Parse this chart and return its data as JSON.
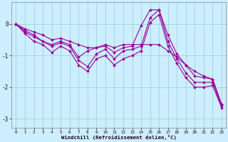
{
  "xlabel": "Windchill (Refroidissement éolien,°C)",
  "bg_color": "#cceeff",
  "line_color": "#990099",
  "grid_color": "#99cccc",
  "x_values": [
    0,
    1,
    2,
    3,
    4,
    5,
    6,
    7,
    8,
    9,
    10,
    11,
    12,
    13,
    14,
    15,
    16,
    17,
    18,
    19,
    20,
    21,
    22,
    23
  ],
  "lines": [
    [
      0.0,
      -0.15,
      -0.25,
      -0.35,
      -0.5,
      -0.45,
      -0.55,
      -0.65,
      -0.75,
      -0.75,
      -0.65,
      -0.75,
      -0.65,
      -0.65,
      -0.65,
      -0.65,
      -0.65,
      -0.85,
      -1.05,
      -1.3,
      -1.5,
      -1.65,
      -1.75,
      -2.55
    ],
    [
      0.0,
      -0.2,
      -0.35,
      -0.55,
      -0.65,
      -0.55,
      -0.65,
      -1.05,
      -0.85,
      -0.75,
      -0.7,
      -0.9,
      -0.75,
      -0.7,
      -0.05,
      0.45,
      0.45,
      -0.35,
      -0.95,
      -1.3,
      -1.65,
      -1.7,
      -1.75,
      -2.55
    ],
    [
      0.0,
      -0.25,
      -0.4,
      -0.55,
      -0.7,
      -0.6,
      -0.7,
      -1.15,
      -1.35,
      -0.95,
      -0.8,
      -1.1,
      -0.85,
      -0.8,
      -0.7,
      0.2,
      0.45,
      -0.55,
      -1.1,
      -1.55,
      -1.85,
      -1.85,
      -1.85,
      -2.6
    ],
    [
      0.0,
      -0.3,
      -0.55,
      -0.65,
      -0.9,
      -0.7,
      -0.85,
      -1.3,
      -1.5,
      -1.1,
      -1.0,
      -1.3,
      -1.1,
      -1.0,
      -0.85,
      0.05,
      0.3,
      -0.7,
      -1.25,
      -1.7,
      -2.0,
      -2.0,
      -1.95,
      -2.65
    ]
  ],
  "ylim": [
    -3.3,
    0.7
  ],
  "xlim": [
    -0.5,
    23.5
  ],
  "yticks": [
    -3,
    -2,
    -1,
    0
  ],
  "xticks": [
    0,
    1,
    2,
    3,
    4,
    5,
    6,
    7,
    8,
    9,
    10,
    11,
    12,
    13,
    14,
    15,
    16,
    17,
    18,
    19,
    20,
    21,
    22,
    23
  ]
}
